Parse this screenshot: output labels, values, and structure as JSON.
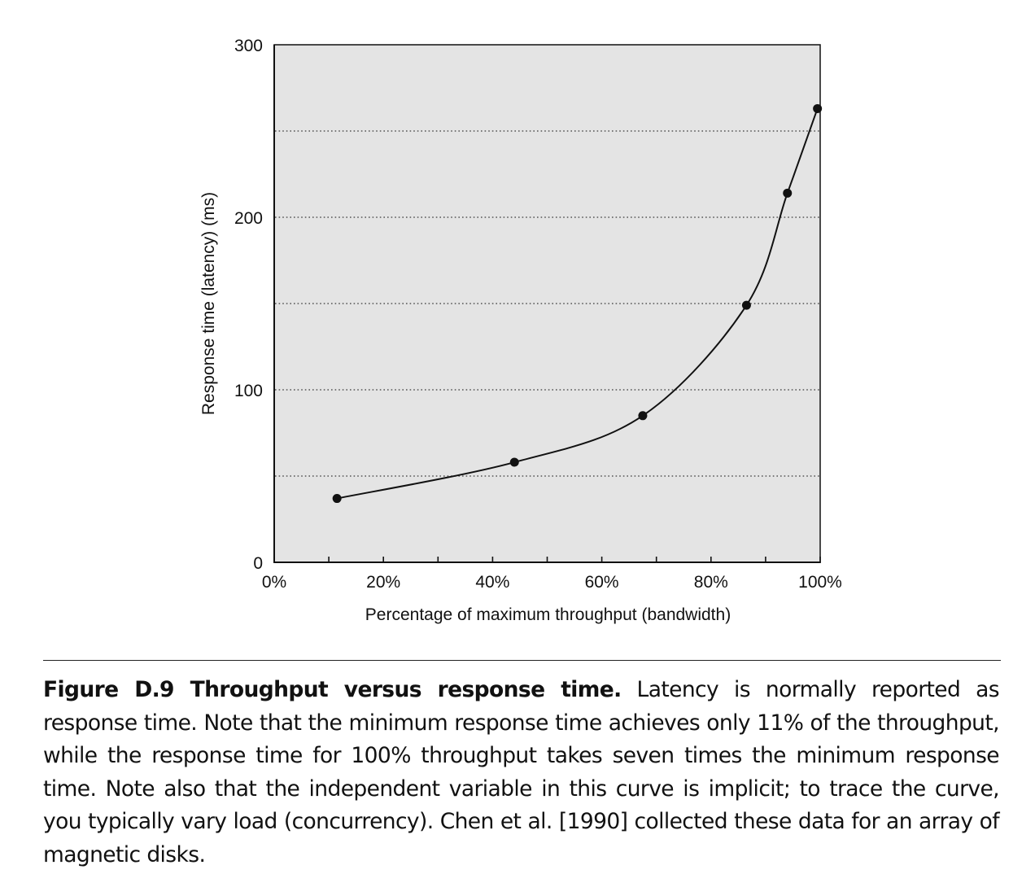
{
  "chart_data": {
    "type": "line",
    "title": "",
    "xlabel": "Percentage of maximum throughput (bandwidth)",
    "ylabel": "Response time (latency) (ms)",
    "xlim": [
      0,
      100
    ],
    "ylim": [
      0,
      300
    ],
    "x_ticks": [
      {
        "value": 0,
        "label": "0%"
      },
      {
        "value": 20,
        "label": "20%"
      },
      {
        "value": 40,
        "label": "40%"
      },
      {
        "value": 60,
        "label": "60%"
      },
      {
        "value": 80,
        "label": "80%"
      },
      {
        "value": 100,
        "label": "100%"
      }
    ],
    "x_minor_ticks": [
      10,
      30,
      50,
      70,
      90
    ],
    "y_ticks": [
      {
        "value": 0,
        "label": "0"
      },
      {
        "value": 100,
        "label": "100"
      },
      {
        "value": 200,
        "label": "200"
      },
      {
        "value": 300,
        "label": "300"
      }
    ],
    "gridlines_y": [
      50,
      100,
      150,
      200,
      250
    ],
    "grid": "horizontal dotted",
    "plot_background": "#e4e4e4",
    "line_color": "#111111",
    "series": [
      {
        "x": [
          11.5,
          44,
          67.5,
          86.5,
          94,
          99.5
        ],
        "y": [
          37,
          58,
          85,
          149,
          214,
          263
        ]
      }
    ]
  },
  "caption": {
    "label": "Figure D.9 Throughput versus response time.",
    "text": "Latency is normally reported as response time. Note that the minimum response time achieves only 11% of the throughput, while the response time for 100% throughput takes seven times the minimum response time. Note also that the independent variable in this curve is implicit; to trace the curve, you typically vary load (concurrency). Chen et al. [1990] collected these data for an array of magnetic disks."
  }
}
